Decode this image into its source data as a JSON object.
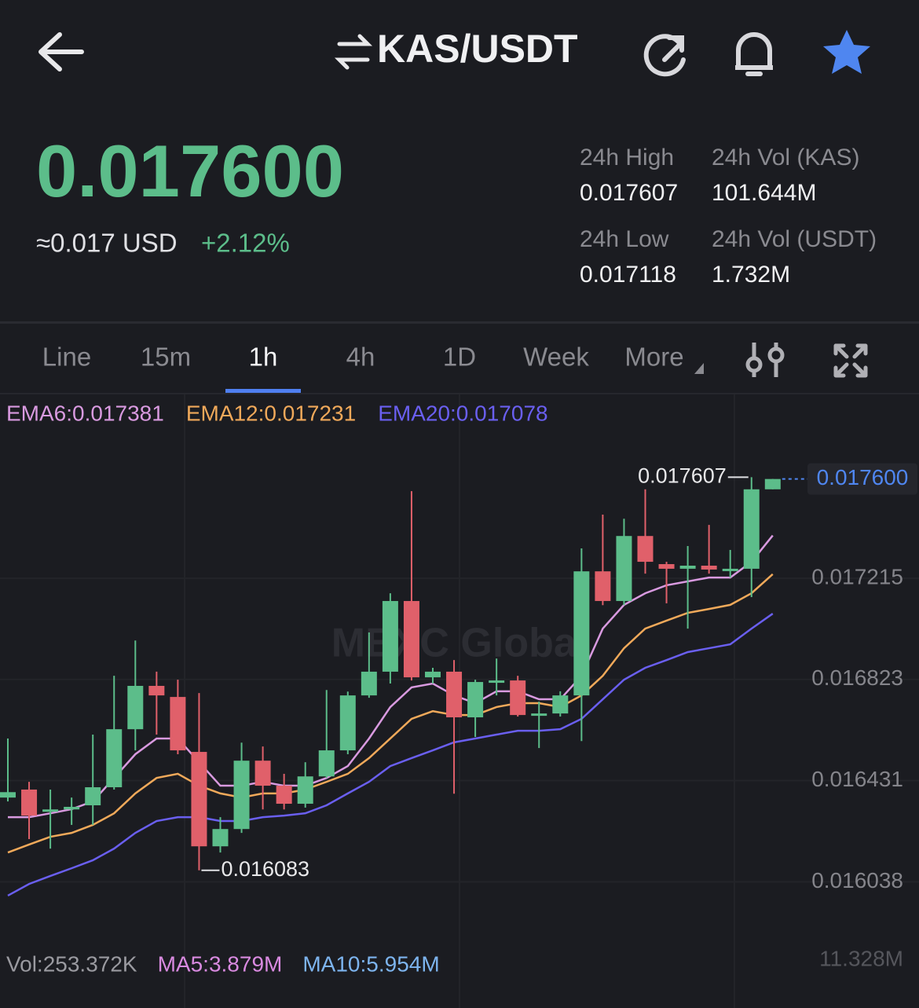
{
  "header": {
    "pair": "KAS/USDT"
  },
  "ticker": {
    "price": "0.017600",
    "usd": "≈0.017 USD",
    "change": "+2.12%",
    "stats": [
      {
        "label": "24h High",
        "value": "0.017607"
      },
      {
        "label": "24h Vol (KAS)",
        "value": "101.644M"
      },
      {
        "label": "24h Low",
        "value": "0.017118"
      },
      {
        "label": "24h Vol  (USDT)",
        "value": "1.732M"
      }
    ]
  },
  "tabs": [
    "Line",
    "15m",
    "1h",
    "4h",
    "1D",
    "Week",
    "More"
  ],
  "active_tab": "1h",
  "chart_data": {
    "type": "candlestick",
    "watermark": "MEXC Global",
    "open": [
      0.016365,
      0.016396,
      0.01631,
      0.016319,
      0.016335,
      0.016405,
      0.01663,
      0.016798,
      0.016755,
      0.016542,
      0.016176,
      0.016243,
      0.016508,
      0.016411,
      0.016341,
      0.016447,
      0.016548,
      0.016761,
      0.016853,
      0.017127,
      0.016831,
      0.016853,
      0.016676,
      0.016813,
      0.016819,
      0.016685,
      0.016691,
      0.016761,
      0.017242,
      0.017127,
      0.017379,
      0.01727,
      0.017252,
      0.017264,
      0.017249,
      0.017252,
      0.01756
    ],
    "high": [
      0.016594,
      0.016426,
      0.016396,
      0.016365,
      0.016609,
      0.016837,
      0.016974,
      0.016853,
      0.016822,
      0.01677,
      0.016289,
      0.016578,
      0.016563,
      0.016457,
      0.016502,
      0.016782,
      0.016776,
      0.017005,
      0.017157,
      0.017553,
      0.016868,
      0.016898,
      0.016822,
      0.016904,
      0.016837,
      0.016737,
      0.016777,
      0.017331,
      0.017462,
      0.017446,
      0.01756,
      0.017279,
      0.01734,
      0.017422,
      0.017325,
      0.017607,
      0.0176
    ],
    "low": [
      0.01635,
      0.016204,
      0.016167,
      0.016259,
      0.016259,
      0.016396,
      0.016548,
      0.016609,
      0.016533,
      0.016083,
      0.016152,
      0.016228,
      0.016319,
      0.016319,
      0.016326,
      0.016441,
      0.016533,
      0.016752,
      0.016807,
      0.016819,
      0.016807,
      0.01638,
      0.0166,
      0.016761,
      0.016679,
      0.016557,
      0.016679,
      0.016584,
      0.017111,
      0.017111,
      0.017233,
      0.017118,
      0.01702,
      0.017233,
      0.017218,
      0.017142,
      0.01756
    ],
    "close": [
      0.016386,
      0.016295,
      0.016319,
      0.016329,
      0.016405,
      0.01663,
      0.016798,
      0.016761,
      0.016548,
      0.016176,
      0.016243,
      0.016508,
      0.016411,
      0.016341,
      0.016447,
      0.016548,
      0.016761,
      0.016853,
      0.017127,
      0.016831,
      0.016853,
      0.016676,
      0.016813,
      0.016819,
      0.016685,
      0.016691,
      0.016761,
      0.017242,
      0.017127,
      0.017379,
      0.017279,
      0.017252,
      0.017264,
      0.017249,
      0.017252,
      0.01756,
      0.0176
    ],
    "up_color": "#5cbd8a",
    "down_color": "#e0606a",
    "series": [
      {
        "name": "EMA6:0.017381",
        "color": "#d99ae0",
        "values": [
          0.016289,
          0.016289,
          0.016304,
          0.01632,
          0.01635,
          0.016441,
          0.016533,
          0.016594,
          0.016594,
          0.016502,
          0.016411,
          0.016411,
          0.016426,
          0.016411,
          0.016411,
          0.016441,
          0.016487,
          0.016594,
          0.016716,
          0.016792,
          0.016807,
          0.016761,
          0.016731,
          0.016777,
          0.016777,
          0.016746,
          0.016746,
          0.016837,
          0.01702,
          0.017112,
          0.017157,
          0.017188,
          0.017203,
          0.017218,
          0.017218,
          0.017279,
          0.017381
        ]
      },
      {
        "name": "EMA12:0.017231",
        "color": "#f0a95a",
        "values": [
          0.016152,
          0.016183,
          0.016213,
          0.016228,
          0.016259,
          0.016304,
          0.016381,
          0.016441,
          0.016457,
          0.016411,
          0.016381,
          0.016365,
          0.016381,
          0.016381,
          0.016396,
          0.016426,
          0.016457,
          0.016518,
          0.016594,
          0.01667,
          0.0167,
          0.016685,
          0.016685,
          0.016716,
          0.016731,
          0.016731,
          0.016716,
          0.016761,
          0.016837,
          0.016944,
          0.01702,
          0.017051,
          0.017081,
          0.017096,
          0.017112,
          0.017157,
          0.017231
        ]
      },
      {
        "name": "EMA20:0.017078",
        "color": "#6a5ff0",
        "values": [
          0.015985,
          0.01603,
          0.016061,
          0.016091,
          0.016122,
          0.016167,
          0.016228,
          0.016274,
          0.016289,
          0.016289,
          0.016274,
          0.016274,
          0.016289,
          0.016295,
          0.016304,
          0.016335,
          0.016381,
          0.016426,
          0.016487,
          0.016518,
          0.016548,
          0.016579,
          0.016594,
          0.016609,
          0.016624,
          0.016624,
          0.01663,
          0.01667,
          0.016746,
          0.016822,
          0.016868,
          0.016898,
          0.016929,
          0.016944,
          0.016959,
          0.01702,
          0.017078
        ]
      }
    ],
    "ylim": [
      0.015802,
      0.017934
    ],
    "yticks": [
      0.017215,
      0.016823,
      0.016431,
      0.016038
    ],
    "grid": true,
    "max_label": {
      "value": 0.017607,
      "label": "0.017607"
    },
    "min_label": {
      "value": 0.016083,
      "label": "0.016083"
    },
    "last_price": {
      "value": 0.0176,
      "label": "0.017600"
    },
    "volume": {
      "labels": [
        {
          "text": "Vol:253.372K",
          "color": "#9a9aa0"
        },
        {
          "text": "MA5:3.879M",
          "color": "#d98ae0"
        },
        {
          "text": "MA10:5.954M",
          "color": "#7db4ee"
        }
      ],
      "axis_max": "11.328M"
    }
  }
}
